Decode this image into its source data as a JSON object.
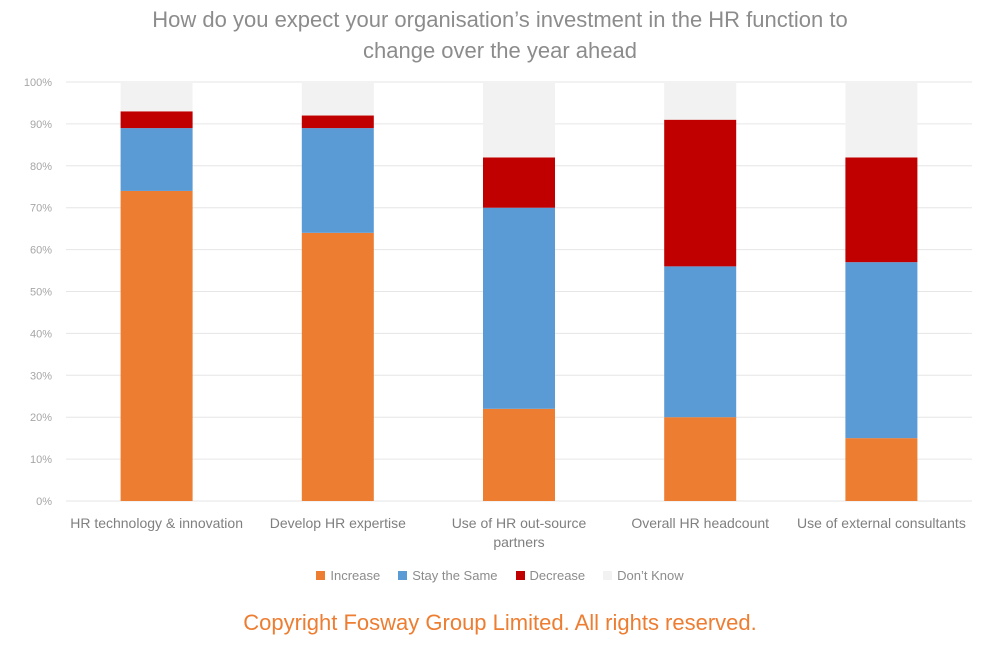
{
  "chart_data": {
    "type": "bar",
    "stacked": true,
    "title": "How do you expect your organisation’s investment in the HR function to change over the year ahead",
    "title_lines": [
      "How do you expect your organisation’s investment in the HR function to",
      "change over the year ahead"
    ],
    "categories": [
      [
        "HR technology & innovation"
      ],
      [
        "Develop HR expertise"
      ],
      [
        "Use of HR out-source",
        "partners"
      ],
      [
        "Overall HR headcount"
      ],
      [
        "Use of external consultants"
      ]
    ],
    "series": [
      {
        "name": "Increase",
        "color": "#ed7d31",
        "values": [
          74,
          64,
          22,
          20,
          15
        ]
      },
      {
        "name": "Stay the Same",
        "color": "#5b9bd5",
        "values": [
          15,
          25,
          48,
          36,
          42
        ]
      },
      {
        "name": "Decrease",
        "color": "#c00000",
        "values": [
          4,
          3,
          12,
          35,
          25
        ]
      },
      {
        "name": "Don’t Know",
        "color": "#f2f2f2",
        "values": [
          7,
          8,
          18,
          9,
          18
        ]
      }
    ],
    "yticks": [
      "0%",
      "10%",
      "20%",
      "30%",
      "40%",
      "50%",
      "60%",
      "70%",
      "80%",
      "90%",
      "100%"
    ],
    "ylim": [
      0,
      100
    ],
    "grid": true,
    "legend_position": "bottom"
  },
  "footer": {
    "copyright": "Copyright Fosway Group Limited. All rights reserved."
  }
}
